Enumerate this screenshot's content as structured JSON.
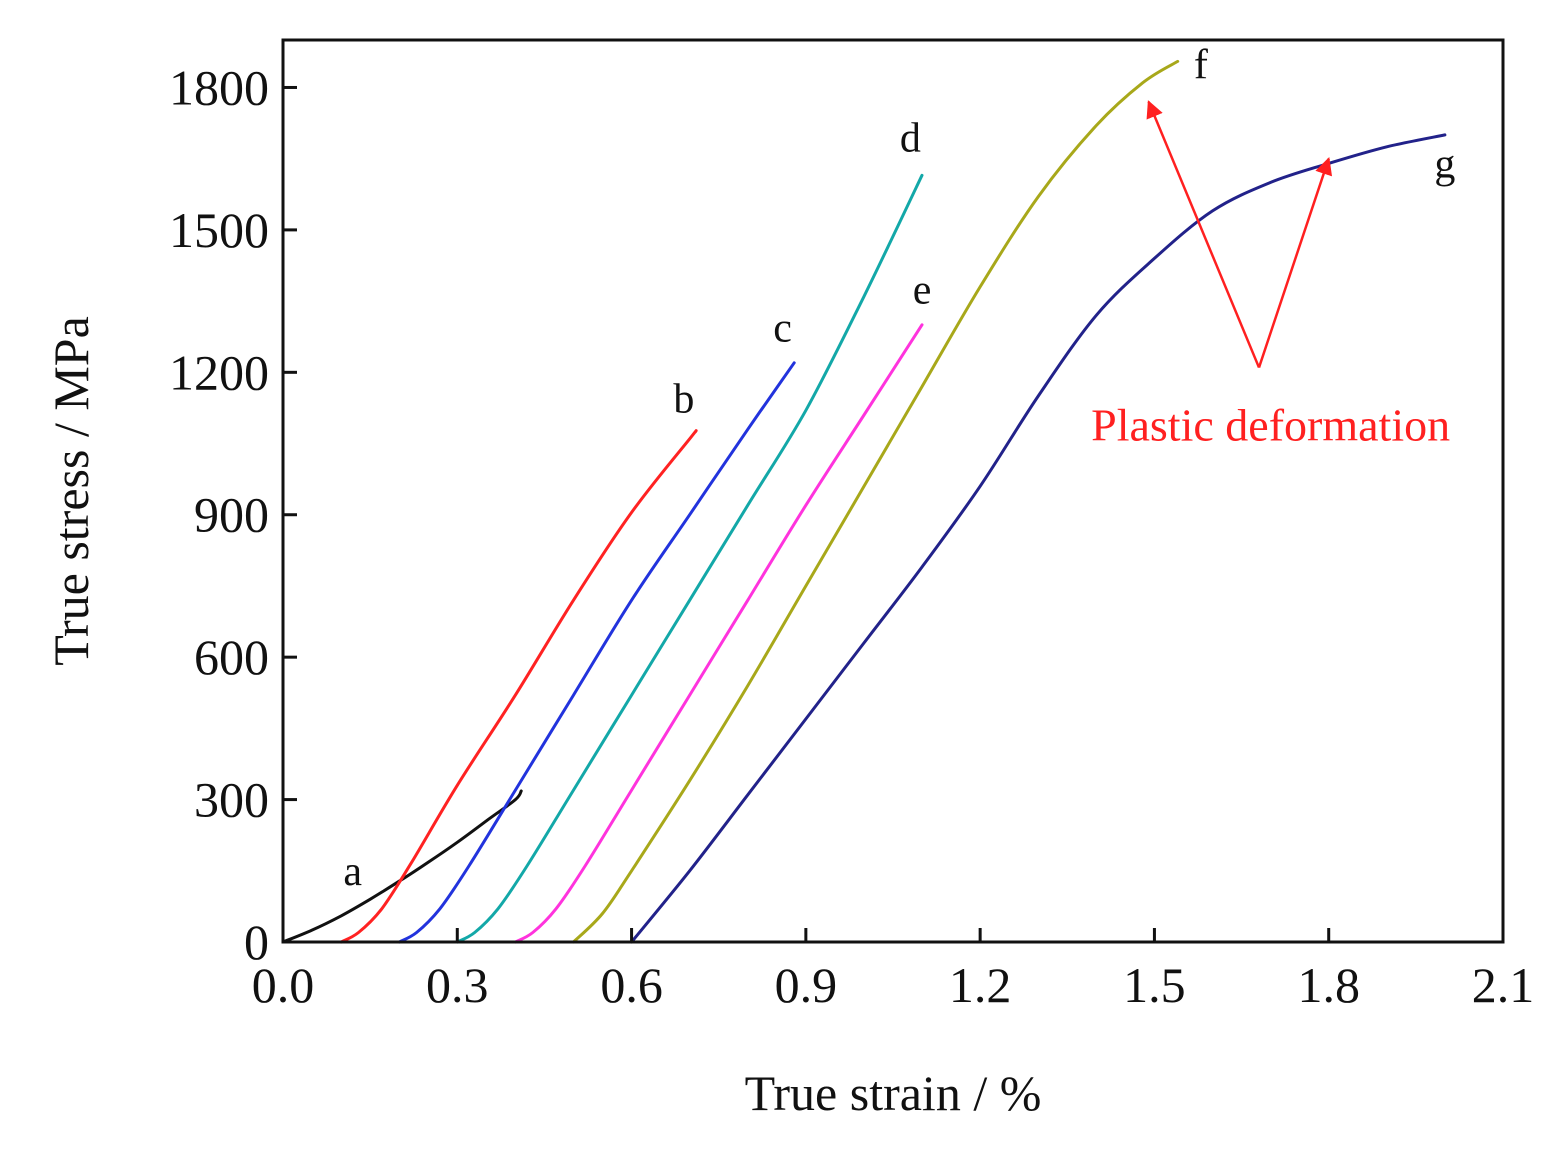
{
  "chart_data": {
    "type": "line",
    "xlabel": "True strain / %",
    "ylabel": "True stress / MPa",
    "xlim": [
      0,
      2.1
    ],
    "ylim": [
      0,
      1900
    ],
    "xticks": [
      "0.0",
      "0.3",
      "0.6",
      "0.9",
      "1.2",
      "1.5",
      "1.8",
      "2.1"
    ],
    "yticks": [
      "0",
      "300",
      "600",
      "900",
      "1200",
      "1500",
      "1800"
    ],
    "grid": false,
    "series": [
      {
        "name": "a",
        "color": "#111111",
        "x": [
          0.0,
          0.05,
          0.1,
          0.15,
          0.2,
          0.25,
          0.3,
          0.35,
          0.4,
          0.41
        ],
        "y": [
          0,
          25,
          55,
          90,
          128,
          168,
          210,
          255,
          300,
          318
        ]
      },
      {
        "name": "b",
        "color": "#ff2222",
        "x": [
          0.1,
          0.13,
          0.17,
          0.22,
          0.3,
          0.4,
          0.5,
          0.6,
          0.7,
          0.71
        ],
        "y": [
          0,
          20,
          70,
          165,
          330,
          520,
          720,
          905,
          1060,
          1075
        ]
      },
      {
        "name": "c",
        "color": "#2233dd",
        "x": [
          0.2,
          0.23,
          0.27,
          0.32,
          0.4,
          0.5,
          0.6,
          0.7,
          0.8,
          0.88
        ],
        "y": [
          0,
          20,
          70,
          160,
          320,
          520,
          720,
          900,
          1080,
          1220
        ]
      },
      {
        "name": "d",
        "color": "#13a8a8",
        "x": [
          0.3,
          0.33,
          0.37,
          0.42,
          0.5,
          0.6,
          0.7,
          0.8,
          0.9,
          1.0,
          1.1
        ],
        "y": [
          0,
          20,
          70,
          160,
          320,
          520,
          720,
          920,
          1120,
          1360,
          1615
        ]
      },
      {
        "name": "e",
        "color": "#ff33dd",
        "x": [
          0.4,
          0.43,
          0.47,
          0.52,
          0.6,
          0.7,
          0.8,
          0.9,
          1.0,
          1.1
        ],
        "y": [
          0,
          20,
          70,
          160,
          320,
          520,
          720,
          920,
          1110,
          1300
        ]
      },
      {
        "name": "f",
        "color": "#a8a81a",
        "x": [
          0.5,
          0.55,
          0.6,
          0.7,
          0.8,
          0.9,
          1.0,
          1.1,
          1.2,
          1.3,
          1.4,
          1.48,
          1.54
        ],
        "y": [
          0,
          60,
          150,
          340,
          540,
          750,
          960,
          1170,
          1380,
          1570,
          1720,
          1810,
          1855
        ]
      },
      {
        "name": "g",
        "color": "#22228a",
        "x": [
          0.6,
          0.7,
          0.8,
          0.9,
          1.0,
          1.1,
          1.2,
          1.3,
          1.4,
          1.5,
          1.6,
          1.7,
          1.8,
          1.9,
          2.0
        ],
        "y": [
          0,
          150,
          310,
          470,
          630,
          790,
          960,
          1150,
          1320,
          1440,
          1540,
          1600,
          1640,
          1675,
          1700
        ]
      }
    ],
    "curve_labels": [
      {
        "text": "a",
        "x": 0.12,
        "y": 120
      },
      {
        "text": "b",
        "x": 0.69,
        "y": 1115
      },
      {
        "text": "c",
        "x": 0.86,
        "y": 1265
      },
      {
        "text": "d",
        "x": 1.08,
        "y": 1665
      },
      {
        "text": "e",
        "x": 1.1,
        "y": 1345
      },
      {
        "text": "f",
        "x": 1.58,
        "y": 1820
      },
      {
        "text": "g",
        "x": 2.0,
        "y": 1610
      }
    ],
    "annotations": [
      {
        "text": "Plastic deformation",
        "color": "#ff2020",
        "x": 1.7,
        "y": 1090,
        "tail": {
          "x": 1.68,
          "y": 1210
        },
        "arrow_heads": [
          {
            "x": 1.49,
            "y": 1770
          },
          {
            "x": 1.8,
            "y": 1650
          }
        ]
      }
    ]
  }
}
